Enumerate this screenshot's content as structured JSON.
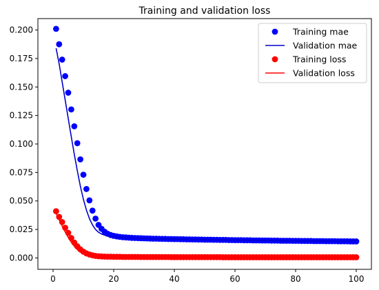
{
  "chart_data": {
    "type": "scatter",
    "title": "Training and validation loss",
    "xlabel": "",
    "ylabel": "",
    "xlim": [
      -5,
      105
    ],
    "ylim": [
      -0.01,
      0.21
    ],
    "xticks": [
      0,
      20,
      40,
      60,
      80,
      100
    ],
    "xtick_labels": [
      "0",
      "20",
      "40",
      "60",
      "80",
      "100"
    ],
    "yticks": [
      0.0,
      0.025,
      0.05,
      0.075,
      0.1,
      0.125,
      0.15,
      0.175,
      0.2
    ],
    "ytick_labels": [
      "0.000",
      "0.025",
      "0.050",
      "0.075",
      "0.100",
      "0.125",
      "0.150",
      "0.175",
      "0.200"
    ],
    "grid": false,
    "legend_position": "top-right",
    "x": [
      1,
      2,
      3,
      4,
      5,
      6,
      7,
      8,
      9,
      10,
      11,
      12,
      13,
      14,
      15,
      16,
      17,
      18,
      19,
      20,
      21,
      22,
      23,
      24,
      25,
      26,
      27,
      28,
      29,
      30,
      31,
      32,
      33,
      34,
      35,
      36,
      37,
      38,
      39,
      40,
      41,
      42,
      43,
      44,
      45,
      46,
      47,
      48,
      49,
      50,
      51,
      52,
      53,
      54,
      55,
      56,
      57,
      58,
      59,
      60,
      61,
      62,
      63,
      64,
      65,
      66,
      67,
      68,
      69,
      70,
      71,
      72,
      73,
      74,
      75,
      76,
      77,
      78,
      79,
      80,
      81,
      82,
      83,
      84,
      85,
      86,
      87,
      88,
      89,
      90,
      91,
      92,
      93,
      94,
      95,
      96,
      97,
      98,
      99,
      100
    ],
    "series": [
      {
        "name": "Training mae",
        "kind": "points",
        "color": "#0000ff",
        "values": [
          0.201,
          0.1875,
          0.174,
          0.1595,
          0.145,
          0.1303,
          0.1155,
          0.1007,
          0.0865,
          0.073,
          0.0605,
          0.0505,
          0.0415,
          0.0345,
          0.029,
          0.0255,
          0.023,
          0.0212,
          0.0201,
          0.0194,
          0.0189,
          0.0185,
          0.0182,
          0.018,
          0.0178,
          0.0176,
          0.0175,
          0.0174,
          0.0173,
          0.0172,
          0.0171,
          0.017,
          0.0169,
          0.0169,
          0.0168,
          0.0167,
          0.0167,
          0.0166,
          0.0166,
          0.0165,
          0.0165,
          0.0164,
          0.0164,
          0.0163,
          0.0163,
          0.0162,
          0.0162,
          0.0161,
          0.0161,
          0.016,
          0.016,
          0.016,
          0.0159,
          0.0159,
          0.0158,
          0.0158,
          0.0158,
          0.0157,
          0.0157,
          0.0156,
          0.0156,
          0.0156,
          0.0155,
          0.0155,
          0.0155,
          0.0154,
          0.0154,
          0.0154,
          0.0153,
          0.0153,
          0.0153,
          0.0152,
          0.0152,
          0.0152,
          0.0151,
          0.0151,
          0.0151,
          0.0151,
          0.015,
          0.015,
          0.015,
          0.0149,
          0.0149,
          0.0149,
          0.0149,
          0.0148,
          0.0148,
          0.0148,
          0.0148,
          0.0147,
          0.0147,
          0.0147,
          0.0147,
          0.0146,
          0.0146,
          0.0146,
          0.0146,
          0.0145,
          0.0145,
          0.0145
        ]
      },
      {
        "name": "Validation mae",
        "kind": "line",
        "color": "#0000cc",
        "values": [
          0.184,
          0.1705,
          0.1545,
          0.1385,
          0.1225,
          0.1065,
          0.091,
          0.0765,
          0.063,
          0.0515,
          0.042,
          0.0345,
          0.029,
          0.025,
          0.0225,
          0.021,
          0.02,
          0.0193,
          0.0188,
          0.0185,
          0.0183,
          0.0181,
          0.0179,
          0.0178,
          0.0176,
          0.0175,
          0.0174,
          0.0173,
          0.0172,
          0.0171,
          0.017,
          0.017,
          0.0169,
          0.0168,
          0.0168,
          0.0167,
          0.0167,
          0.0166,
          0.0166,
          0.0165,
          0.0165,
          0.0164,
          0.0164,
          0.0163,
          0.0163,
          0.0162,
          0.0162,
          0.0161,
          0.0161,
          0.0161,
          0.016,
          0.016,
          0.0159,
          0.0159,
          0.0159,
          0.0158,
          0.0158,
          0.0157,
          0.0157,
          0.0157,
          0.0156,
          0.0156,
          0.0156,
          0.0155,
          0.0155,
          0.0155,
          0.0154,
          0.0154,
          0.0154,
          0.0153,
          0.0153,
          0.0153,
          0.0152,
          0.0152,
          0.0152,
          0.0152,
          0.0151,
          0.0151,
          0.0151,
          0.015,
          0.015,
          0.015,
          0.015,
          0.0149,
          0.0149,
          0.0149,
          0.0149,
          0.0148,
          0.0148,
          0.0148,
          0.0148,
          0.0147,
          0.0147,
          0.0147,
          0.0147,
          0.0146,
          0.0146,
          0.0146,
          0.016,
          0.015
        ]
      },
      {
        "name": "Training loss",
        "kind": "points",
        "color": "#ff0000",
        "values": [
          0.041,
          0.036,
          0.0315,
          0.0265,
          0.022,
          0.0175,
          0.0135,
          0.0102,
          0.0075,
          0.0055,
          0.004,
          0.003,
          0.0023,
          0.0018,
          0.0015,
          0.0013,
          0.0012,
          0.0011,
          0.0011,
          0.001,
          0.001,
          0.001,
          0.0009,
          0.0009,
          0.0009,
          0.0009,
          0.0009,
          0.0009,
          0.0008,
          0.0008,
          0.0008,
          0.0008,
          0.0008,
          0.0008,
          0.0008,
          0.0008,
          0.0008,
          0.0008,
          0.0007,
          0.0007,
          0.0007,
          0.0007,
          0.0007,
          0.0007,
          0.0007,
          0.0007,
          0.0007,
          0.0007,
          0.0007,
          0.0007,
          0.0007,
          0.0007,
          0.0007,
          0.0007,
          0.0007,
          0.0006,
          0.0006,
          0.0006,
          0.0006,
          0.0006,
          0.0006,
          0.0006,
          0.0006,
          0.0006,
          0.0006,
          0.0006,
          0.0006,
          0.0006,
          0.0006,
          0.0006,
          0.0006,
          0.0006,
          0.0006,
          0.0006,
          0.0006,
          0.0006,
          0.0006,
          0.0006,
          0.0006,
          0.0006,
          0.0006,
          0.0006,
          0.0006,
          0.0006,
          0.0006,
          0.0006,
          0.0006,
          0.0006,
          0.0006,
          0.0006,
          0.0006,
          0.0006,
          0.0006,
          0.0006,
          0.0006,
          0.0006,
          0.0006,
          0.0006,
          0.0006,
          0.0006
        ]
      },
      {
        "name": "Validation loss",
        "kind": "line",
        "color": "#ff0000",
        "values": [
          0.039,
          0.0335,
          0.028,
          0.0228,
          0.018,
          0.0138,
          0.0102,
          0.0073,
          0.0051,
          0.0036,
          0.0026,
          0.002,
          0.0016,
          0.0013,
          0.0012,
          0.0011,
          0.001,
          0.001,
          0.0009,
          0.0009,
          0.0009,
          0.0009,
          0.0008,
          0.0008,
          0.0008,
          0.0008,
          0.0008,
          0.0008,
          0.0008,
          0.0008,
          0.0008,
          0.0007,
          0.0007,
          0.0007,
          0.0007,
          0.0007,
          0.0007,
          0.0007,
          0.0007,
          0.0007,
          0.0007,
          0.0007,
          0.0007,
          0.0007,
          0.0007,
          0.0007,
          0.0007,
          0.0007,
          0.0007,
          0.0007,
          0.0007,
          0.0007,
          0.0007,
          0.0007,
          0.0007,
          0.0006,
          0.0006,
          0.0006,
          0.0006,
          0.0006,
          0.0006,
          0.0006,
          0.0006,
          0.0006,
          0.0006,
          0.0006,
          0.0006,
          0.0006,
          0.0006,
          0.0006,
          0.0006,
          0.0006,
          0.0006,
          0.0006,
          0.0006,
          0.0006,
          0.0006,
          0.0006,
          0.0006,
          0.0006,
          0.0006,
          0.0006,
          0.0006,
          0.0006,
          0.0006,
          0.0006,
          0.0006,
          0.0006,
          0.0006,
          0.0006,
          0.0006,
          0.0006,
          0.0006,
          0.0006,
          0.0006,
          0.0006,
          0.0006,
          0.0006,
          0.0006,
          0.0006
        ]
      }
    ]
  }
}
